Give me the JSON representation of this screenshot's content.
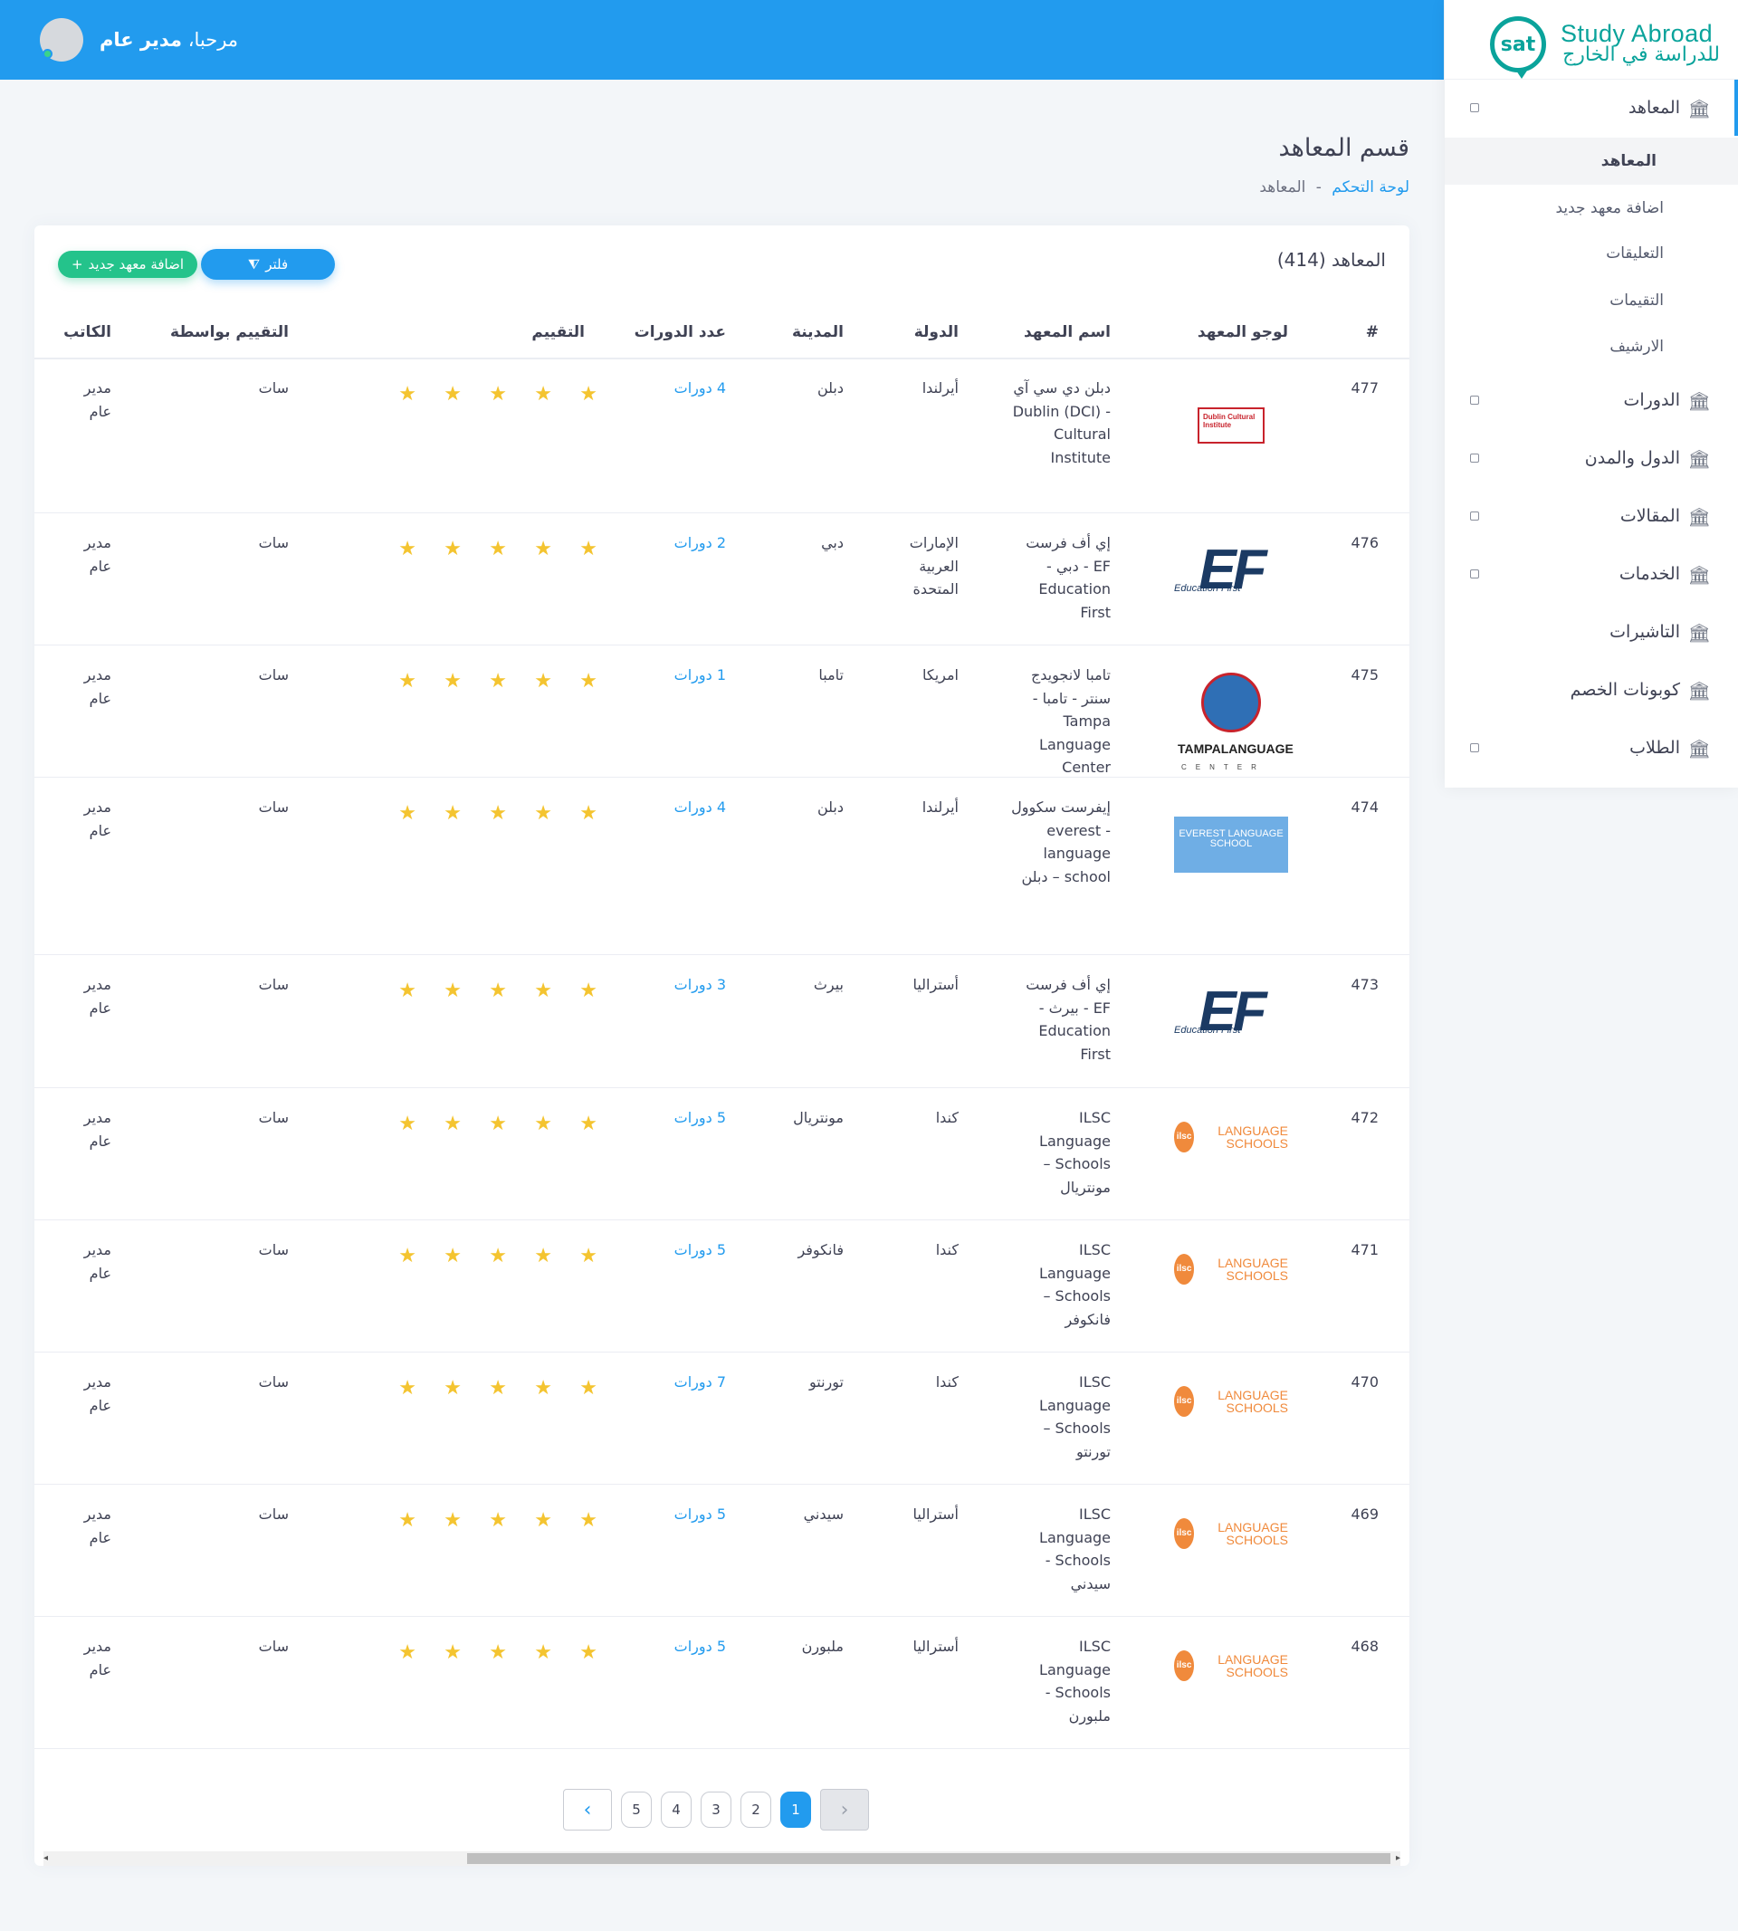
{
  "header": {
    "greeting": "مرحبا،",
    "user_name": "مدير عام"
  },
  "brand": {
    "pin_text": "sat",
    "name_en": "Study Abroad",
    "name_ar": "للدراسة في الخارج"
  },
  "sidebar": {
    "items": [
      {
        "label": "المعاهد",
        "icon": "bank-icon"
      },
      {
        "label": "الدورات",
        "icon": "bank-icon"
      },
      {
        "label": "الدول والمدن",
        "icon": "bank-icon"
      },
      {
        "label": "المقالات",
        "icon": "bank-icon"
      },
      {
        "label": "الخدمات",
        "icon": "bank-icon"
      },
      {
        "label": "التاشيرات",
        "icon": "bank-icon"
      },
      {
        "label": "كوبونات الخصم",
        "icon": "bank-icon"
      },
      {
        "label": "الطلاب",
        "icon": "bank-icon"
      }
    ],
    "sub_items": [
      {
        "label": "المعاهد"
      },
      {
        "label": "اضافة معهد جديد"
      },
      {
        "label": "التعليقات"
      },
      {
        "label": "التقيمات"
      },
      {
        "label": "الارشيف"
      }
    ]
  },
  "page": {
    "title": "قسم المعاهد",
    "breadcrumb_home": "لوحة التحكم",
    "breadcrumb_sep": "-",
    "breadcrumb_current": "المعاهد"
  },
  "card": {
    "title": "المعاهد (414)",
    "add_button": "اضافة معهد جديد",
    "add_icon": "+",
    "filter_button": "فلتر",
    "filter_icon": "filter-icon"
  },
  "table": {
    "headers": {
      "id": "#",
      "logo": "لوجو المعهد",
      "name": "اسم المعهد",
      "country": "الدولة",
      "city": "المدينة",
      "courses": "عدد الدورات",
      "rating": "التقييم",
      "rated_by": "التقييم بواسطة",
      "author": "الكاتب"
    },
    "rows": [
      {
        "id": "477",
        "logo": "dci",
        "name": "دبلن دي سي آي - (DCI) Dublin Cultural Institute",
        "country": "أيرلندا",
        "city": "دبلن",
        "courses": "4 دورات",
        "rating": 5,
        "rated_by": "سات",
        "author": "مدير عام"
      },
      {
        "id": "476",
        "logo": "ef",
        "name": "إي أف فرست EF - دبي - Education First",
        "country": "الإمارات العربية المتحدة",
        "city": "دبي",
        "courses": "2 دورات",
        "rating": 5,
        "rated_by": "سات",
        "author": "مدير عام"
      },
      {
        "id": "475",
        "logo": "tampa",
        "name": "تامبا لانجويدج سنتر - تامبا - Tampa Language Center",
        "country": "امريكا",
        "city": "تامبا",
        "courses": "1 دورات",
        "rating": 5,
        "rated_by": "سات",
        "author": "مدير عام"
      },
      {
        "id": "474",
        "logo": "everest",
        "name": "إيفرست سكوول - everest language school – دبلن",
        "country": "أيرلندا",
        "city": "دبلن",
        "courses": "4 دورات",
        "rating": 5,
        "rated_by": "سات",
        "author": "مدير عام"
      },
      {
        "id": "473",
        "logo": "ef",
        "name": "إي أف فرست EF - بيرث - Education First",
        "country": "أستراليا",
        "city": "بيرث",
        "courses": "3 دورات",
        "rating": 5,
        "rated_by": "سات",
        "author": "مدير عام"
      },
      {
        "id": "472",
        "logo": "ilsc",
        "name": "ILSC Language Schools – مونتريال",
        "country": "كندا",
        "city": "مونتريال",
        "courses": "5 دورات",
        "rating": 5,
        "rated_by": "سات",
        "author": "مدير عام"
      },
      {
        "id": "471",
        "logo": "ilsc",
        "name": "ILSC Language Schools – فانكوفر",
        "country": "كندا",
        "city": "فانكوفر",
        "courses": "5 دورات",
        "rating": 5,
        "rated_by": "سات",
        "author": "مدير عام"
      },
      {
        "id": "470",
        "logo": "ilsc",
        "name": "ILSC Language Schools – تورنتو",
        "country": "كندا",
        "city": "تورنتو",
        "courses": "7 دورات",
        "rating": 5,
        "rated_by": "سات",
        "author": "مدير عام"
      },
      {
        "id": "469",
        "logo": "ilsc",
        "name": "ILSC Language Schools - سيدني",
        "country": "أستراليا",
        "city": "سيدني",
        "courses": "5 دورات",
        "rating": 5,
        "rated_by": "سات",
        "author": "مدير عام"
      },
      {
        "id": "468",
        "logo": "ilsc",
        "name": "ILSC Language Schools - ملبورن",
        "country": "أستراليا",
        "city": "ملبورن",
        "courses": "5 دورات",
        "rating": 5,
        "rated_by": "سات",
        "author": "مدير عام"
      }
    ]
  },
  "logos": {
    "dci": "Dublin Cultural Institute",
    "ef": "EF",
    "ef_sub": "Education First",
    "tampa_1": "TAMPALANGUAGE",
    "tampa_2": "CENTER",
    "everest": "EVEREST LANGUAGE SCHOOL",
    "ilsc_badge": "ilsc",
    "ilsc_text": "LANGUAGE SCHOOLS"
  },
  "pagination": {
    "pages": [
      "1",
      "2",
      "3",
      "4",
      "5"
    ],
    "current": "1",
    "prev_icon": "chevron-left-icon",
    "next_icon": "chevron-right-icon"
  },
  "colors": {
    "primary": "#229bee",
    "success": "#24c38b",
    "brand": "#0aa39b",
    "star": "#f4c430"
  }
}
